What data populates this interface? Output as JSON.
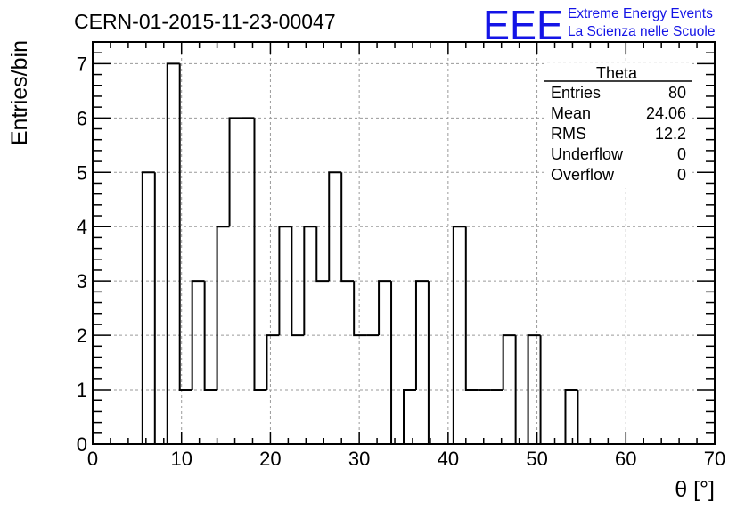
{
  "page": {
    "title": "CERN-01-2015-11-23-00047",
    "brand": {
      "logo": "EEE",
      "line1": "Extreme Energy Events",
      "line2": "La Scienza nelle Scuole",
      "color": "#1414e6"
    }
  },
  "stats": {
    "title": "Theta",
    "rows": [
      {
        "label": "Entries",
        "value": "80"
      },
      {
        "label": "Mean",
        "value": "24.06"
      },
      {
        "label": "RMS",
        "value": "12.2"
      },
      {
        "label": "Underflow",
        "value": "0"
      },
      {
        "label": "Overflow",
        "value": "0"
      }
    ]
  },
  "chart_data": {
    "type": "bar",
    "histogram": true,
    "title": "CERN-01-2015-11-23-00047",
    "xlabel": "θ [°]",
    "ylabel": "Entries/bin",
    "xlim": [
      0,
      70
    ],
    "ylim": [
      0,
      7.4
    ],
    "bin_width": 1.4,
    "bin_edges_start": 0,
    "values": [
      0,
      0,
      0,
      0,
      5,
      0,
      7,
      1,
      3,
      1,
      4,
      6,
      6,
      1,
      2,
      4,
      2,
      4,
      3,
      5,
      3,
      2,
      2,
      3,
      0,
      1,
      3,
      0,
      0,
      4,
      1,
      1,
      1,
      2,
      0,
      2,
      0,
      0,
      1,
      0,
      0,
      0,
      0,
      0,
      0,
      0,
      0,
      0,
      0,
      0
    ],
    "x_ticks": [
      0,
      10,
      20,
      30,
      40,
      50,
      60,
      70
    ],
    "y_ticks": [
      0,
      1,
      2,
      3,
      4,
      5,
      6,
      7
    ],
    "x_tick_labels": [
      "0",
      "10",
      "20",
      "30",
      "40",
      "50",
      "60",
      "70"
    ],
    "y_tick_labels": [
      "0",
      "1",
      "2",
      "3",
      "4",
      "5",
      "6",
      "7"
    ],
    "grid": true,
    "line_color": "#000000",
    "grid_color": "#9a9a9a"
  }
}
